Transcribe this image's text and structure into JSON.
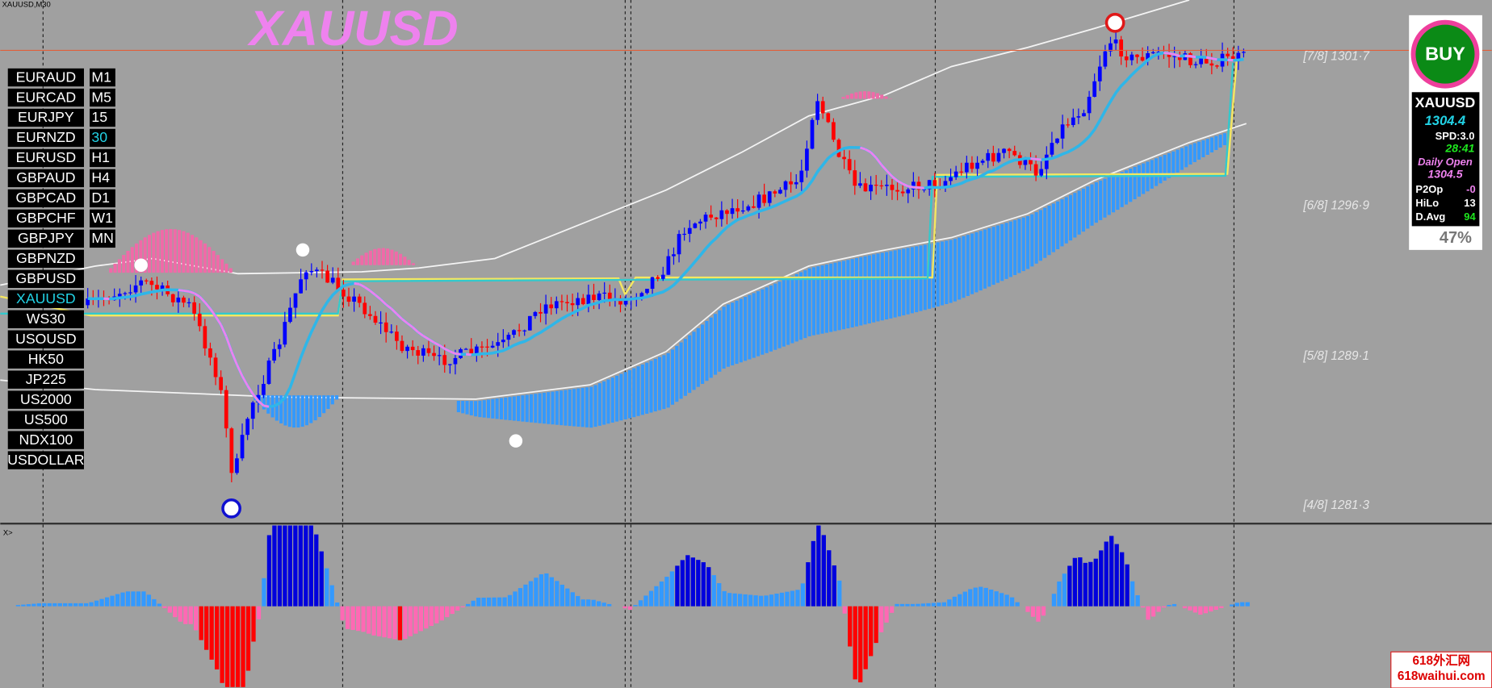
{
  "window": {
    "title": "XAUUSD,M30",
    "subwindow_label": "X>"
  },
  "chart": {
    "symbol_label": "XAUUSD",
    "levels": [
      "[7/8] 1301·7",
      "[6/8] 1296·9",
      "[5/8] 1289·1",
      "[4/8] 1281·3"
    ]
  },
  "symbols": [
    {
      "label": "EURAUD"
    },
    {
      "label": "EURCAD"
    },
    {
      "label": "EURJPY"
    },
    {
      "label": "EURNZD"
    },
    {
      "label": "EURUSD"
    },
    {
      "label": "GBPAUD"
    },
    {
      "label": "GBPCAD"
    },
    {
      "label": "GBPCHF"
    },
    {
      "label": "GBPJPY"
    },
    {
      "label": "GBPNZD"
    },
    {
      "label": "GBPUSD"
    },
    {
      "label": "XAUUSD",
      "active": true
    },
    {
      "label": "WS30"
    },
    {
      "label": "USOUSD"
    },
    {
      "label": "HK50"
    },
    {
      "label": "JP225"
    },
    {
      "label": "US2000"
    },
    {
      "label": "US500"
    },
    {
      "label": "NDX100"
    },
    {
      "label": "USDOLLAR"
    }
  ],
  "timeframes": [
    {
      "label": "M1"
    },
    {
      "label": "M5"
    },
    {
      "label": "15"
    },
    {
      "label": "30",
      "active": true
    },
    {
      "label": "H1"
    },
    {
      "label": "H4"
    },
    {
      "label": "D1"
    },
    {
      "label": "W1"
    },
    {
      "label": "MN"
    }
  ],
  "panel": {
    "signal": "BUY",
    "symbol": "XAUUSD",
    "price": "1304.4",
    "spread": "SPD:3.0",
    "timer": "28:41",
    "daily_open_label": "Daily Open",
    "daily_open": "1304.5",
    "rows": [
      [
        "P2Op",
        "-0"
      ],
      [
        "HiLo",
        "13"
      ],
      [
        "D.Avg",
        "94"
      ]
    ],
    "percent": "47%"
  },
  "watermark": {
    "line1": "618外汇网",
    "line2": "618waihui.com"
  }
}
